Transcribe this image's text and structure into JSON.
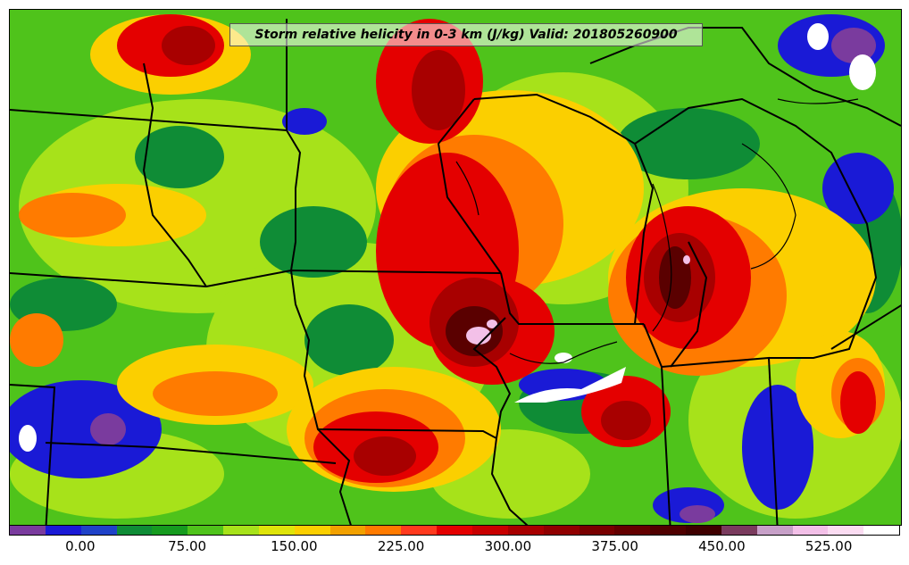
{
  "title": "Storm relative helicity in 0-3 km (J/kg) Valid: 201805260900",
  "field": {
    "name": "Storm relative helicity",
    "layer": "0-3 km",
    "units": "J/kg",
    "valid_time": "201805260900"
  },
  "colorbar": {
    "colors": [
      "#7a3b9e",
      "#1a1ad6",
      "#1f42c8",
      "#0f8c36",
      "#169b1f",
      "#4fc31b",
      "#a7e21a",
      "#dfe40a",
      "#fbcf00",
      "#f2a100",
      "#ff7b00",
      "#ff3a1e",
      "#e40000",
      "#c80000",
      "#a80000",
      "#900000",
      "#780000",
      "#640000",
      "#500000",
      "#3f0000",
      "#7a3b5e",
      "#c7a0c8",
      "#f3c0e8",
      "#fbdcf2",
      "#ffffff"
    ],
    "ticks": [
      {
        "label": "0.00",
        "value": 0
      },
      {
        "label": "75.00",
        "value": 75
      },
      {
        "label": "150.00",
        "value": 150
      },
      {
        "label": "225.00",
        "value": 225
      },
      {
        "label": "300.00",
        "value": 300
      },
      {
        "label": "375.00",
        "value": 375
      },
      {
        "label": "450.00",
        "value": 450
      },
      {
        "label": "525.00",
        "value": 525
      }
    ],
    "min": -50,
    "max": 575
  },
  "map_colors": {
    "background": "#4fc31b",
    "low": "#1a1ad6",
    "green": "#0f8c36",
    "yellowgreen": "#a7e21a",
    "yellow": "#fbcf00",
    "orange": "#ff7b00",
    "red": "#e40000",
    "darkred": "#780000",
    "extreme": "#ffffff",
    "boundaries": "#000000"
  }
}
